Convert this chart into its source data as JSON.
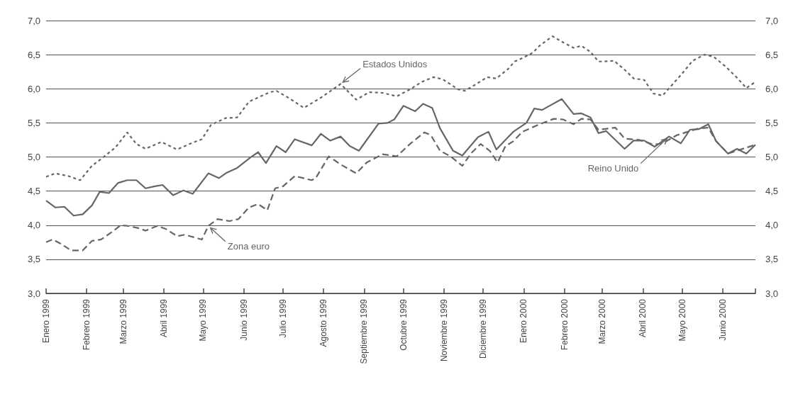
{
  "chart_data": {
    "type": "line",
    "xlim": [
      "1999-01-01",
      "2000-06-26"
    ],
    "xticks": [
      {
        "value": "1999-01-01",
        "label": "Enero 1999"
      },
      {
        "value": "1999-02-01",
        "label": "Febrero 1999"
      },
      {
        "value": "1999-03-01",
        "label": "Marzo 1999"
      },
      {
        "value": "1999-04-01",
        "label": "Abril 1999"
      },
      {
        "value": "1999-05-01",
        "label": "Mayo 1999"
      },
      {
        "value": "1999-06-01",
        "label": "Junio 1999"
      },
      {
        "value": "1999-07-01",
        "label": "Julio 1999"
      },
      {
        "value": "1999-08-01",
        "label": "Agosto 1999"
      },
      {
        "value": "1999-09-01",
        "label": "Septiembre 1999"
      },
      {
        "value": "1999-10-01",
        "label": "Octubre 1999"
      },
      {
        "value": "1999-11-01",
        "label": "Noviembre 1999"
      },
      {
        "value": "1999-12-01",
        "label": "Diciembre 1999"
      },
      {
        "value": "2000-01-01",
        "label": "Enero 2000"
      },
      {
        "value": "2000-02-01",
        "label": "Febrero 2000"
      },
      {
        "value": "2000-03-01",
        "label": "Marzo 2000"
      },
      {
        "value": "2000-04-01",
        "label": "Abril 2000"
      },
      {
        "value": "2000-05-01",
        "label": "Mayo 2000"
      },
      {
        "value": "2000-06-01",
        "label": "Junio 2000"
      },
      {
        "value": "2000-06-26",
        "label": null
      }
    ],
    "ylim": [
      3,
      7
    ],
    "yticks": [
      {
        "value": 3,
        "label": "3,0"
      },
      {
        "value": 3.5,
        "label": "3,5"
      },
      {
        "value": 4,
        "label": "4,0"
      },
      {
        "value": 4.5,
        "label": "4,5"
      },
      {
        "value": 5,
        "label": "5,0"
      },
      {
        "value": 5.5,
        "label": "5,5"
      },
      {
        "value": 6,
        "label": "6,0"
      },
      {
        "value": 6.5,
        "label": "6,5"
      },
      {
        "value": 7,
        "label": "7,0"
      }
    ],
    "y2lim": [
      3,
      7
    ],
    "y2ticks": [
      {
        "value": 3,
        "label": "3,0"
      },
      {
        "value": 3.5,
        "label": "3,5"
      },
      {
        "value": 4,
        "label": "4,0"
      },
      {
        "value": 4.5,
        "label": "4,5"
      },
      {
        "value": 5,
        "label": "5,0"
      },
      {
        "value": 5.5,
        "label": "5,5"
      },
      {
        "value": 6,
        "label": "6,0"
      },
      {
        "value": 6.5,
        "label": "6,5"
      },
      {
        "value": 7,
        "label": "7,0"
      }
    ],
    "grid": "y",
    "legend": false,
    "marker": "none",
    "series": [
      {
        "name": "Estados Unidos",
        "color": "#666666",
        "line_style": "dotted",
        "x": [
          "1999-01-01",
          "1999-01-08",
          "1999-01-18",
          "1999-01-27",
          "1999-02-05",
          "1999-02-14",
          "1999-02-23",
          "1999-03-04",
          "1999-03-11",
          "1999-03-18",
          "1999-03-30",
          "1999-04-11",
          "1999-04-23",
          "1999-04-30",
          "1999-05-07",
          "1999-05-18",
          "1999-05-27",
          "1999-06-05",
          "1999-06-14",
          "1999-06-21",
          "1999-06-26",
          "1999-07-05",
          "1999-07-17",
          "1999-07-30",
          "1999-08-14",
          "1999-08-26",
          "1999-09-05",
          "1999-09-15",
          "1999-09-26",
          "1999-10-06",
          "1999-10-15",
          "1999-10-24",
          "1999-10-31",
          "1999-11-12",
          "1999-11-17",
          "1999-11-24",
          "1999-12-04",
          "1999-12-11",
          "1999-12-20",
          "1999-12-25",
          "1999-12-31",
          "2000-01-08",
          "2000-01-13",
          "2000-01-23",
          "2000-01-31",
          "2000-02-08",
          "2000-02-14",
          "2000-02-21",
          "2000-02-27",
          "2000-03-02",
          "2000-03-10",
          "2000-03-18",
          "2000-03-25",
          "2000-04-02",
          "2000-04-09",
          "2000-04-16",
          "2000-04-23",
          "2000-04-30",
          "2000-05-09",
          "2000-05-18",
          "2000-05-25",
          "2000-06-03",
          "2000-06-12",
          "2000-06-19",
          "2000-06-26"
        ],
        "values": [
          4.71,
          4.76,
          4.72,
          4.66,
          4.87,
          5.0,
          5.14,
          5.36,
          5.19,
          5.12,
          5.22,
          5.11,
          5.21,
          5.26,
          5.47,
          5.57,
          5.58,
          5.81,
          5.89,
          5.95,
          5.97,
          5.87,
          5.72,
          5.87,
          6.07,
          5.84,
          5.95,
          5.94,
          5.89,
          5.99,
          6.1,
          6.17,
          6.14,
          5.99,
          5.97,
          6.05,
          6.17,
          6.15,
          6.29,
          6.4,
          6.45,
          6.53,
          6.63,
          6.77,
          6.68,
          6.6,
          6.63,
          6.54,
          6.4,
          6.4,
          6.41,
          6.28,
          6.15,
          6.13,
          5.93,
          5.9,
          6.05,
          6.2,
          6.41,
          6.5,
          6.47,
          6.33,
          6.16,
          6.01,
          6.1
        ]
      },
      {
        "name": "Reino Unido",
        "color": "#666666",
        "line_style": "solid",
        "x": [
          "1999-01-01",
          "1999-01-08",
          "1999-01-15",
          "1999-01-22",
          "1999-01-29",
          "1999-02-05",
          "1999-02-11",
          "1999-02-18",
          "1999-02-25",
          "1999-03-04",
          "1999-03-11",
          "1999-03-18",
          "1999-03-25",
          "1999-03-31",
          "1999-04-08",
          "1999-04-16",
          "1999-04-23",
          "1999-05-05",
          "1999-05-13",
          "1999-05-19",
          "1999-05-27",
          "1999-06-06",
          "1999-06-12",
          "1999-06-18",
          "1999-06-26",
          "1999-07-03",
          "1999-07-10",
          "1999-07-23",
          "1999-07-30",
          "1999-08-06",
          "1999-08-14",
          "1999-08-21",
          "1999-08-28",
          "1999-09-12",
          "1999-09-19",
          "1999-09-24",
          "1999-10-01",
          "1999-10-10",
          "1999-10-16",
          "1999-10-23",
          "1999-10-29",
          "1999-11-08",
          "1999-11-15",
          "1999-11-27",
          "1999-12-05",
          "1999-12-11",
          "1999-12-20",
          "1999-12-24",
          "2000-01-03",
          "2000-01-09",
          "2000-01-15",
          "2000-01-30",
          "2000-02-08",
          "2000-02-14",
          "2000-02-21",
          "2000-02-27",
          "2000-03-04",
          "2000-03-18",
          "2000-03-25",
          "2000-04-02",
          "2000-04-10",
          "2000-04-21",
          "2000-04-30",
          "2000-05-07",
          "2000-05-14",
          "2000-05-21",
          "2000-05-27",
          "2000-06-05",
          "2000-06-12",
          "2000-06-19",
          "2000-06-26"
        ],
        "values": [
          4.36,
          4.26,
          4.27,
          4.14,
          4.16,
          4.29,
          4.49,
          4.47,
          4.62,
          4.66,
          4.66,
          4.54,
          4.57,
          4.59,
          4.44,
          4.51,
          4.46,
          4.76,
          4.69,
          4.77,
          4.84,
          4.99,
          5.07,
          4.91,
          5.16,
          5.07,
          5.26,
          5.17,
          5.34,
          5.24,
          5.3,
          5.16,
          5.09,
          5.49,
          5.5,
          5.55,
          5.75,
          5.67,
          5.78,
          5.72,
          5.42,
          5.09,
          5.02,
          5.29,
          5.37,
          5.11,
          5.29,
          5.37,
          5.5,
          5.71,
          5.69,
          5.85,
          5.63,
          5.64,
          5.58,
          5.35,
          5.38,
          5.12,
          5.24,
          5.24,
          5.15,
          5.3,
          5.2,
          5.4,
          5.41,
          5.48,
          5.23,
          5.05,
          5.12,
          5.05,
          5.18
        ]
      },
      {
        "name": "Zona euro",
        "color": "#666666",
        "line_style": "dashed",
        "x": [
          "1999-01-01",
          "1999-01-06",
          "1999-01-13",
          "1999-01-20",
          "1999-01-29",
          "1999-02-05",
          "1999-02-12",
          "1999-02-21",
          "1999-02-27",
          "1999-03-04",
          "1999-03-12",
          "1999-03-18",
          "1999-03-27",
          "1999-04-03",
          "1999-04-11",
          "1999-04-17",
          "1999-04-30",
          "1999-05-05",
          "1999-05-12",
          "1999-05-21",
          "1999-05-28",
          "1999-06-05",
          "1999-06-12",
          "1999-06-19",
          "1999-06-25",
          "1999-07-01",
          "1999-07-10",
          "1999-07-23",
          "1999-07-26",
          "1999-08-05",
          "1999-08-14",
          "1999-08-26",
          "1999-09-03",
          "1999-09-15",
          "1999-09-26",
          "1999-10-06",
          "1999-10-17",
          "1999-10-22",
          "1999-10-29",
          "1999-11-06",
          "1999-11-15",
          "1999-11-22",
          "1999-11-29",
          "1999-12-06",
          "1999-12-12",
          "1999-12-18",
          "1999-12-24",
          "1999-12-31",
          "2000-01-13",
          "2000-01-24",
          "2000-01-31",
          "2000-02-08",
          "2000-02-14",
          "2000-02-21",
          "2000-02-27",
          "2000-03-11",
          "2000-03-18",
          "2000-03-29",
          "2000-04-02",
          "2000-04-09",
          "2000-04-16",
          "2000-04-27",
          "2000-05-07",
          "2000-05-14",
          "2000-05-21",
          "2000-05-27",
          "2000-06-05",
          "2000-06-26"
        ],
        "values": [
          3.75,
          3.79,
          3.72,
          3.63,
          3.63,
          3.77,
          3.79,
          3.91,
          4.0,
          3.99,
          3.96,
          3.92,
          3.99,
          3.94,
          3.84,
          3.86,
          3.79,
          3.99,
          4.09,
          4.06,
          4.09,
          4.26,
          4.31,
          4.22,
          4.54,
          4.57,
          4.72,
          4.66,
          4.69,
          5.01,
          4.89,
          4.76,
          4.92,
          5.04,
          5.01,
          5.19,
          5.36,
          5.32,
          5.09,
          5.01,
          4.87,
          5.06,
          5.19,
          5.09,
          4.92,
          5.16,
          5.23,
          5.37,
          5.48,
          5.56,
          5.55,
          5.48,
          5.56,
          5.55,
          5.4,
          5.43,
          5.27,
          5.25,
          5.23,
          5.18,
          5.2,
          5.32,
          5.38,
          5.42,
          5.43,
          5.23,
          5.05,
          5.18
        ]
      }
    ]
  }
}
